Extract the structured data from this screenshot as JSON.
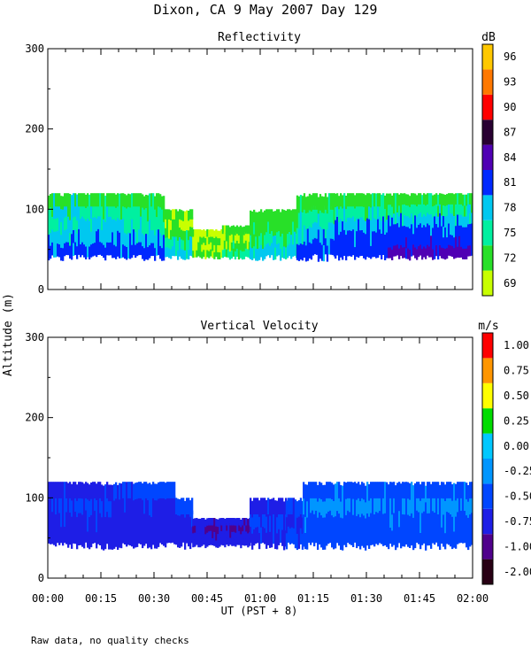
{
  "title": "Dixon, CA  9 May 2007  Day 129",
  "y_axis_label": "Altitude (m)",
  "x_axis_label": "UT  (PST + 8)",
  "footer_note": "Raw data, no quality checks",
  "x_ticks": [
    "00:00",
    "00:15",
    "00:30",
    "00:45",
    "01:00",
    "01:15",
    "01:30",
    "01:45",
    "02:00"
  ],
  "chart_data": [
    {
      "type": "heatmap",
      "title": "Reflectivity",
      "ylabel": "Altitude (m)",
      "xlabel": "UT  (PST + 8)",
      "x_range_hours": [
        0,
        2
      ],
      "ylim": [
        0,
        300
      ],
      "y_ticks": [
        "0",
        "100",
        "200",
        "300"
      ],
      "colorbar_unit": "dB",
      "colorbar_labels": [
        "69",
        "72",
        "75",
        "78",
        "81",
        "84",
        "87",
        "90",
        "93",
        "96"
      ],
      "colorbar_colors": [
        "#c8ff00",
        "#28e028",
        "#00f0a0",
        "#00c8f0",
        "#0028ff",
        "#5000b4",
        "#280032",
        "#ff0000",
        "#ff7800",
        "#ffc800"
      ],
      "bands": [
        {
          "t0": 0.0,
          "t1": 0.15,
          "z0": 40,
          "z1": 120,
          "colors": [
            "#0028ff",
            "#00c8f0",
            "#00f0a0",
            "#00c8f0",
            "#28e028"
          ]
        },
        {
          "t0": 0.15,
          "t1": 0.35,
          "z0": 40,
          "z1": 120,
          "colors": [
            "#0028ff",
            "#00c8f0",
            "#00c8f0",
            "#00f0a0",
            "#28e028"
          ]
        },
        {
          "t0": 0.35,
          "t1": 0.55,
          "z0": 40,
          "z1": 120,
          "colors": [
            "#0028ff",
            "#00c8f0",
            "#00f0a0",
            "#00f0a0",
            "#28e028"
          ]
        },
        {
          "t0": 0.55,
          "t1": 0.68,
          "z0": 40,
          "z1": 100,
          "colors": [
            "#00c8f0",
            "#00f0a0",
            "#28e028",
            "#c8ff00",
            "#28e028"
          ]
        },
        {
          "t0": 0.68,
          "t1": 0.82,
          "z0": 40,
          "z1": 75,
          "colors": [
            "#28e028",
            "#c8ff00",
            "#28e028",
            "#c8ff00"
          ]
        },
        {
          "t0": 0.82,
          "t1": 0.95,
          "z0": 40,
          "z1": 80,
          "colors": [
            "#00f0a0",
            "#28e028",
            "#c8ff00",
            "#28e028"
          ]
        },
        {
          "t0": 0.95,
          "t1": 1.17,
          "z0": 40,
          "z1": 100,
          "colors": [
            "#00c8f0",
            "#00f0a0",
            "#28e028",
            "#28e028"
          ]
        },
        {
          "t0": 1.17,
          "t1": 1.35,
          "z0": 40,
          "z1": 120,
          "colors": [
            "#0028ff",
            "#00c8f0",
            "#00f0a0",
            "#28e028"
          ]
        },
        {
          "t0": 1.35,
          "t1": 1.6,
          "z0": 40,
          "z1": 120,
          "colors": [
            "#0028ff",
            "#0028ff",
            "#00c8f0",
            "#00f0a0",
            "#28e028"
          ]
        },
        {
          "t0": 1.6,
          "t1": 1.8,
          "z0": 40,
          "z1": 120,
          "colors": [
            "#5000b4",
            "#0028ff",
            "#0028ff",
            "#00c8f0",
            "#00f0a0",
            "#28e028"
          ]
        },
        {
          "t0": 1.8,
          "t1": 2.0,
          "z0": 40,
          "z1": 120,
          "colors": [
            "#5000b4",
            "#0028ff",
            "#0028ff",
            "#00c8f0",
            "#00f0a0",
            "#28e028"
          ]
        }
      ]
    },
    {
      "type": "heatmap",
      "title": "Vertical Velocity",
      "ylabel": "Altitude (m)",
      "xlabel": "UT  (PST + 8)",
      "x_range_hours": [
        0,
        2
      ],
      "ylim": [
        0,
        300
      ],
      "y_ticks": [
        "0",
        "100",
        "200",
        "300"
      ],
      "colorbar_unit": "m/s",
      "colorbar_labels": [
        "-2.00",
        "-1.00",
        "-0.75",
        "-0.50",
        "-0.25",
        "0.00",
        "0.25",
        "0.50",
        "0.75",
        "1.00"
      ],
      "colorbar_colors": [
        "#280014",
        "#50008c",
        "#1e1ee6",
        "#0046ff",
        "#0096ff",
        "#00c8ff",
        "#00dc00",
        "#ffff00",
        "#ff9600",
        "#ff0000"
      ],
      "bands": [
        {
          "t0": 0.0,
          "t1": 0.3,
          "z0": 40,
          "z1": 120,
          "colors": [
            "#1e1ee6",
            "#1e1ee6",
            "#0046ff",
            "#1e1ee6"
          ]
        },
        {
          "t0": 0.3,
          "t1": 0.6,
          "z0": 40,
          "z1": 120,
          "colors": [
            "#1e1ee6",
            "#1e1ee6",
            "#1e1ee6",
            "#0046ff"
          ]
        },
        {
          "t0": 0.6,
          "t1": 0.68,
          "z0": 40,
          "z1": 100,
          "colors": [
            "#1e1ee6",
            "#1e1ee6",
            "#0046ff"
          ]
        },
        {
          "t0": 0.68,
          "t1": 0.95,
          "z0": 40,
          "z1": 75,
          "colors": [
            "#1e1ee6",
            "#1e1ee6",
            "#50008c",
            "#1e1ee6"
          ]
        },
        {
          "t0": 0.95,
          "t1": 1.12,
          "z0": 40,
          "z1": 100,
          "colors": [
            "#1e1ee6",
            "#0046ff",
            "#1e1ee6"
          ]
        },
        {
          "t0": 1.12,
          "t1": 1.2,
          "z0": 40,
          "z1": 100,
          "colors": [
            "#0046ff",
            "#1e1ee6",
            "#0046ff"
          ]
        },
        {
          "t0": 1.2,
          "t1": 1.6,
          "z0": 40,
          "z1": 120,
          "colors": [
            "#0046ff",
            "#0046ff",
            "#0096ff",
            "#0046ff"
          ]
        },
        {
          "t0": 1.6,
          "t1": 2.0,
          "z0": 40,
          "z1": 120,
          "colors": [
            "#0046ff",
            "#0046ff",
            "#0096ff",
            "#0046ff"
          ]
        }
      ]
    }
  ]
}
